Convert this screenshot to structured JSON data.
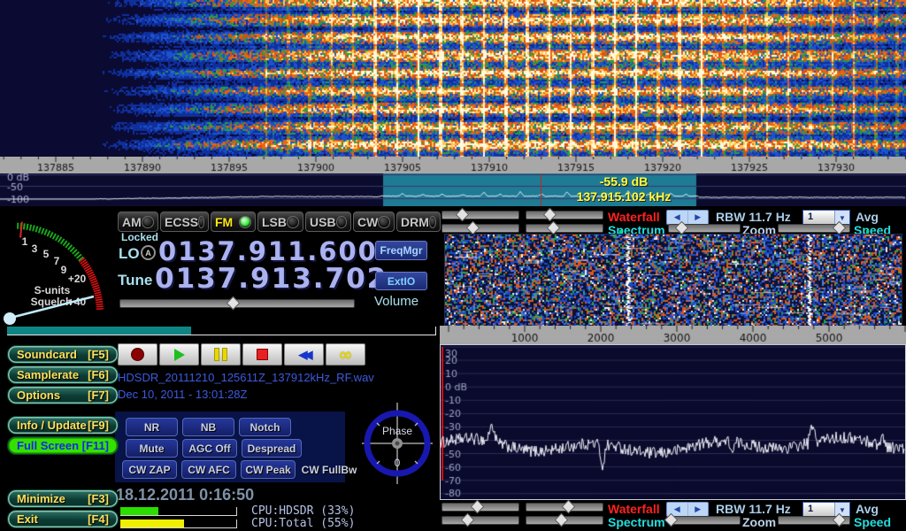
{
  "colors": {
    "accent_cyan": "#00e0e0",
    "accent_red": "#ff2222",
    "readout_yellow": "#ffff3a",
    "lcd_digits": "#aab2f0",
    "teal_band": "#1f7b94",
    "button_yellow": "#ffe05a",
    "link_blue": "#3d5ae0"
  },
  "main_waterfall": {
    "scale_labels": [
      "137885",
      "137890",
      "137895",
      "137900",
      "137905",
      "137910",
      "137915",
      "137920",
      "137925",
      "137930"
    ]
  },
  "overview_spectrum": {
    "db_labels": [
      "0 dB",
      "-50",
      "-100"
    ],
    "readout_db": "-55.9 dB",
    "readout_freq": "137.915.102 kHz"
  },
  "modes": [
    {
      "label": "AM",
      "active": false
    },
    {
      "label": "ECSS",
      "active": false
    },
    {
      "label": "FM",
      "active": true
    },
    {
      "label": "LSB",
      "active": false
    },
    {
      "label": "USB",
      "active": false
    },
    {
      "label": "CW",
      "active": false
    },
    {
      "label": "DRM",
      "active": false
    }
  ],
  "tuner": {
    "locked": "Locked",
    "lo_label": "LO",
    "lo_badge": "A",
    "lo_value": "0137.911.600",
    "tune_label": "Tune",
    "tune_value": "0137.913.702",
    "freqmgr_button": "FreqMgr",
    "extio_button": "ExtIO",
    "volume_label": "Volume"
  },
  "smeter": {
    "labels": [
      "1",
      "3",
      "5",
      "7",
      "9",
      "+20",
      "+40"
    ],
    "caption1": "S-units",
    "caption2": "Squelch"
  },
  "left_buttons": [
    {
      "name": "Soundcard",
      "key": "[F5]",
      "active": false
    },
    {
      "name": "Samplerate",
      "key": "[F6]",
      "active": false
    },
    {
      "name": "Options",
      "key": "[F7]",
      "active": false
    },
    {
      "name": "Info / Update",
      "key": "[F9]",
      "active": false
    },
    {
      "name": "Full Screen",
      "key": "[F11]",
      "active": true
    },
    {
      "name": "Minimize",
      "key": "[F3]",
      "active": false
    },
    {
      "name": "Exit",
      "key": "[F4]",
      "active": false
    }
  ],
  "recorder": {
    "buttons": [
      "record",
      "play",
      "pause",
      "stop",
      "rewind",
      "loop"
    ],
    "filename": "HDSDR_20111210_125611Z_137912kHz_RF.wav",
    "timestamp": "Dec 10, 2011 - 13:01:28Z"
  },
  "dsp": {
    "row1": [
      "NR",
      "NB",
      "Notch"
    ],
    "row2": [
      "Mute",
      "AGC Off",
      "Despread"
    ],
    "row3": [
      "CW ZAP",
      "CW AFC",
      "CW Peak",
      "CW FullBw"
    ]
  },
  "phase": {
    "label": "Phase",
    "value": "0"
  },
  "status": {
    "datetime": "18.12.2011 0:16:50",
    "cpu_hdsdr": "CPU:HDSDR (33%)",
    "cpu_total": "CPU:Total (55%)",
    "cpu_hdsdr_pct": 33,
    "cpu_total_pct": 55
  },
  "panel_controls": {
    "waterfall_label": "Waterfall",
    "spectrum_label": "Spectrum",
    "rbw_label": "RBW 11.7 Hz",
    "avg_value": "1",
    "avg_label": "Avg",
    "zoom_label": "Zoom",
    "speed_label": "Speed"
  },
  "audio_scale_labels": [
    "1000",
    "2000",
    "3000",
    "4000",
    "5000"
  ],
  "audio_spectrum_db": [
    "30",
    "20",
    "10",
    "0 dB",
    "-10",
    "-20",
    "-30",
    "-40",
    "-50",
    "-60",
    "-70",
    "-80"
  ]
}
